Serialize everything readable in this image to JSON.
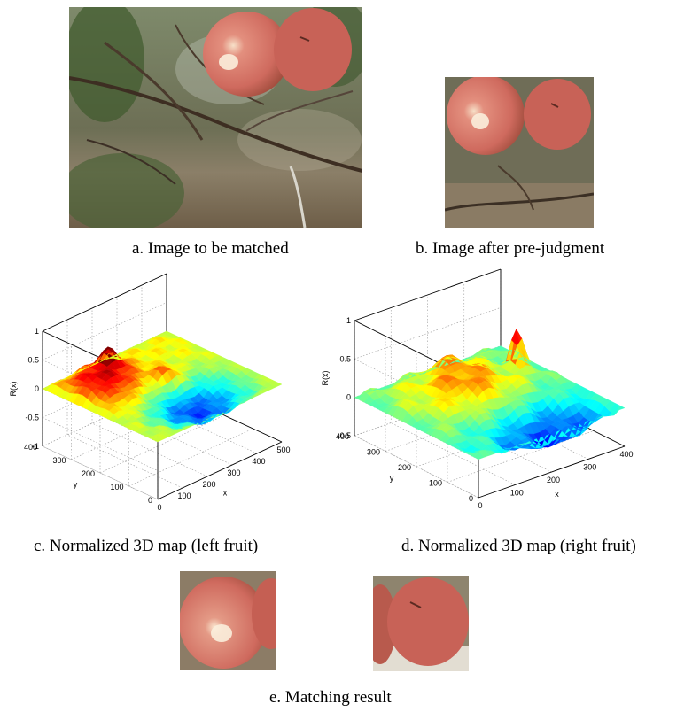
{
  "panels": {
    "a": {
      "caption": "a. Image to be matched"
    },
    "b": {
      "caption": "b. Image after pre-judgment"
    },
    "c": {
      "caption": "c. Normalized 3D map (left fruit)"
    },
    "d": {
      "caption": "d. Normalized 3D map (right fruit)"
    },
    "e": {
      "caption": "e. Matching result"
    }
  },
  "colors": {
    "apple": "#cf6a5e",
    "apple_dark": "#a84639",
    "foliage": "#5d6b4a",
    "ground": "#8a7a62",
    "surface_low": "#1f3cd6",
    "surface_mid": "#26e0e8",
    "surface_high_mid": "#e8e81a",
    "surface_high": "#e01a10"
  },
  "chart_data": [
    {
      "type": "surface3d",
      "zlabel": "R(x)",
      "xlabel": "x",
      "ylabel": "y",
      "zlim": [
        -1,
        1
      ],
      "z_ticks": [
        "1",
        "0.5",
        "0",
        "-0.5",
        "-1"
      ],
      "x_ticks": [
        "0",
        "100",
        "200",
        "300",
        "400",
        "500"
      ],
      "y_ticks": [
        "0",
        "100",
        "200",
        "300",
        "400"
      ],
      "peak_z": 0.35,
      "min_z": -0.45
    },
    {
      "type": "surface3d",
      "zlabel": "R(x)",
      "xlabel": "x",
      "ylabel": "y",
      "zlim": [
        -0.5,
        1
      ],
      "z_ticks": [
        "1",
        "0.5",
        "0",
        "-0.5"
      ],
      "x_ticks": [
        "0",
        "100",
        "200",
        "300",
        "400"
      ],
      "y_ticks": [
        "0",
        "100",
        "200",
        "300",
        "400"
      ],
      "peak_z": 0.55,
      "min_z": -0.45
    }
  ]
}
